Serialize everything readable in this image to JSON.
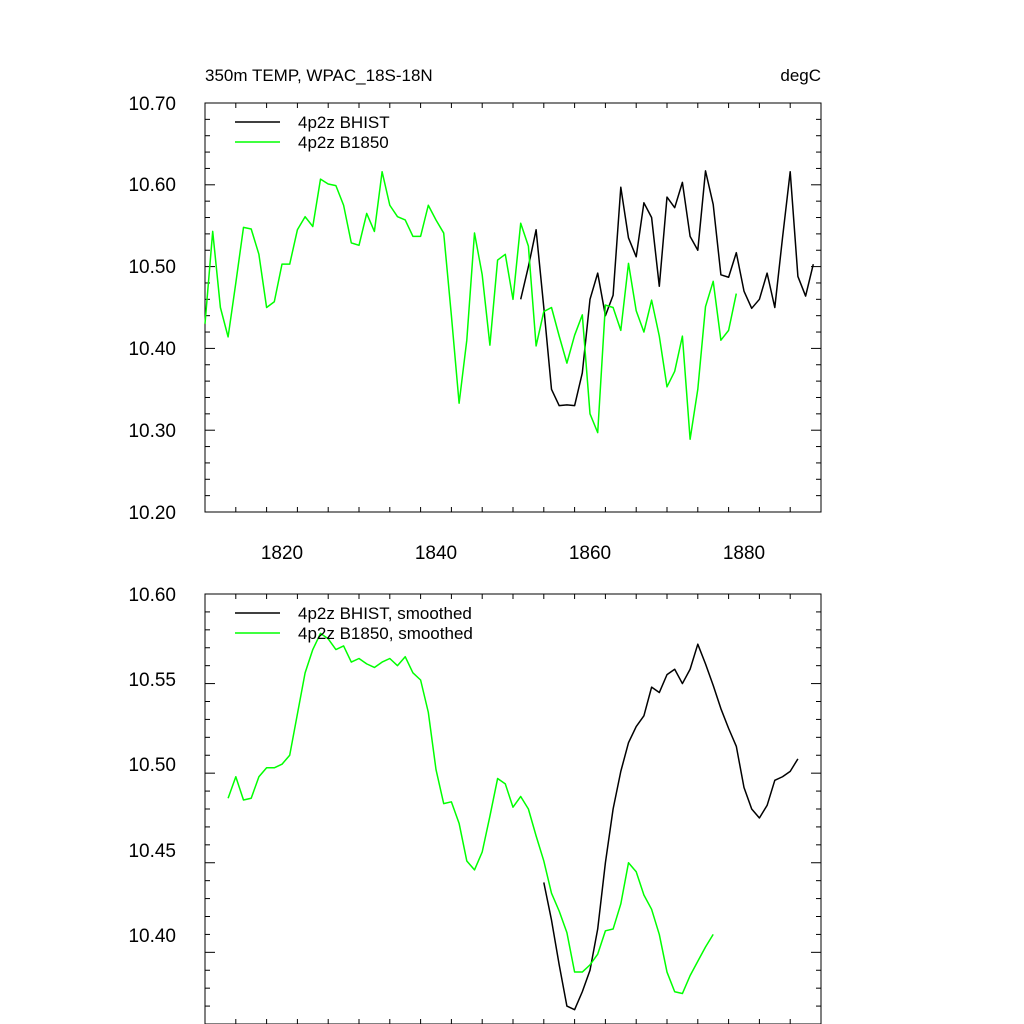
{
  "chart_data": [
    {
      "type": "line",
      "title": "350m TEMP, WPAC_18S-18N",
      "units": "degC",
      "xlim": [
        1810,
        1890
      ],
      "ylim": [
        10.2,
        10.7
      ],
      "yticks": [
        "10.20",
        "10.30",
        "10.40",
        "10.50",
        "10.60",
        "10.70"
      ],
      "xticks": [
        "1820",
        "1840",
        "1860",
        "1880"
      ],
      "legend_position": "top-left",
      "series": [
        {
          "name": "4p2z BHIST",
          "color": "#000000",
          "x_start": 1851,
          "values": [
            10.46,
            10.5,
            10.545,
            10.45,
            10.35,
            10.33,
            10.331,
            10.33,
            10.37,
            10.46,
            10.492,
            10.44,
            10.465,
            10.597,
            10.535,
            10.512,
            10.578,
            10.56,
            10.476,
            10.585,
            10.572,
            10.603,
            10.537,
            10.52,
            10.617,
            10.576,
            10.49,
            10.487,
            10.517,
            10.47,
            10.449,
            10.46,
            10.492,
            10.45,
            10.535,
            10.616,
            10.488,
            10.464,
            10.503
          ]
        },
        {
          "name": "4p2z B1850",
          "color": "#00ff00",
          "x_start": 1810,
          "values": [
            10.43,
            10.543,
            10.45,
            10.414,
            10.48,
            10.548,
            10.546,
            10.515,
            10.45,
            10.457,
            10.503,
            10.503,
            10.545,
            10.561,
            10.549,
            10.607,
            10.601,
            10.599,
            10.575,
            10.529,
            10.526,
            10.565,
            10.543,
            10.616,
            10.575,
            10.561,
            10.557,
            10.537,
            10.537,
            10.575,
            10.557,
            10.541,
            10.44,
            10.333,
            10.41,
            10.541,
            10.49,
            10.404,
            10.508,
            10.515,
            10.46,
            10.553,
            10.525,
            10.403,
            10.445,
            10.45,
            10.415,
            10.382,
            10.416,
            10.441,
            10.32,
            10.297,
            10.453,
            10.45,
            10.422,
            10.504,
            10.446,
            10.42,
            10.459,
            10.415,
            10.353,
            10.372,
            10.415,
            10.289,
            10.35,
            10.451,
            10.482,
            10.41,
            10.422,
            10.467
          ]
        }
      ]
    },
    {
      "type": "line",
      "title": "",
      "xlim": [
        1810,
        1890
      ],
      "ylim": [
        10.36,
        10.6
      ],
      "yticks": [
        "10.40",
        "10.45",
        "10.50",
        "10.55",
        "10.60"
      ],
      "xticks": [],
      "legend_position": "top-left",
      "series": [
        {
          "name": "4p2z BHIST, smoothed",
          "color": "#000000",
          "x_start": 1854,
          "values": [
            10.439,
            10.418,
            10.393,
            10.37,
            10.368,
            10.378,
            10.39,
            10.413,
            10.45,
            10.48,
            10.501,
            10.517,
            10.526,
            10.532,
            10.548,
            10.545,
            10.555,
            10.558,
            10.55,
            10.558,
            10.572,
            10.561,
            10.549,
            10.536,
            10.525,
            10.515,
            10.492,
            10.48,
            10.475,
            10.482,
            10.496,
            10.498,
            10.501,
            10.508
          ]
        },
        {
          "name": "4p2z B1850, smoothed",
          "color": "#00ff00",
          "x_start": 1813,
          "values": [
            10.486,
            10.498,
            10.485,
            10.486,
            10.498,
            10.503,
            10.503,
            10.505,
            10.51,
            10.533,
            10.556,
            10.569,
            10.578,
            10.575,
            10.569,
            10.571,
            10.562,
            10.564,
            10.561,
            10.559,
            10.562,
            10.564,
            10.56,
            10.565,
            10.556,
            10.552,
            10.534,
            10.502,
            10.483,
            10.484,
            10.472,
            10.451,
            10.446,
            10.456,
            10.476,
            10.497,
            10.494,
            10.481,
            10.487,
            10.48,
            10.465,
            10.451,
            10.433,
            10.423,
            10.411,
            10.389,
            10.389,
            10.393,
            10.399,
            10.412,
            10.413,
            10.427,
            10.45,
            10.445,
            10.432,
            10.424,
            10.41,
            10.389,
            10.378,
            10.377,
            10.387,
            10.395,
            10.403,
            10.41
          ]
        }
      ]
    }
  ]
}
